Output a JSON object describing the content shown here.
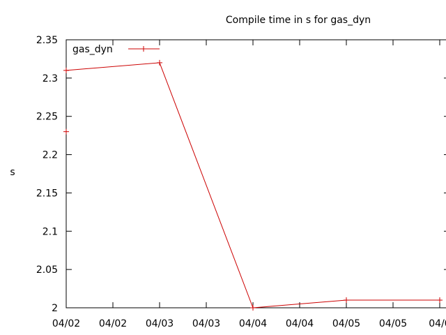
{
  "chart_data": {
    "type": "line",
    "title": "Compile time in  s for gas_dyn",
    "ylabel": "s",
    "xlabel": "",
    "ylim": [
      2,
      2.35
    ],
    "xlim": [
      0,
      4
    ],
    "yticks": [
      "2",
      "2.05",
      "2.1",
      "2.15",
      "2.2",
      "2.25",
      "2.3",
      "2.35"
    ],
    "xticks": [
      "04/02",
      "04/02",
      "04/03",
      "04/03",
      "04/04",
      "04/04",
      "04/05",
      "04/05",
      "04/0"
    ],
    "legend": "top-left",
    "series": [
      {
        "name": "gas_dyn",
        "color": "#cc0000",
        "x": [
          0,
          1,
          2,
          3,
          4
        ],
        "y": [
          2.31,
          2.32,
          2.0,
          2.01,
          2.01
        ]
      }
    ],
    "extra_points": [
      {
        "x": 0,
        "y": 2.23
      }
    ]
  }
}
